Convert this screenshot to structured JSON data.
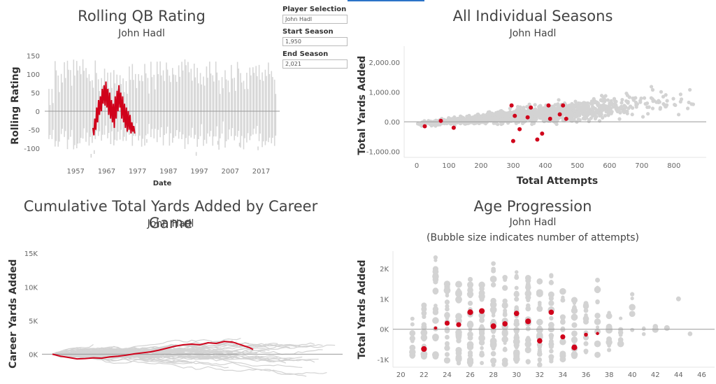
{
  "controls": {
    "player_label": "Player Selection",
    "player_value": "John Hadl",
    "start_label": "Start Season",
    "start_value": "1,950",
    "end_label": "End Season",
    "end_value": "2,021"
  },
  "colors": {
    "highlight": "#d0021b",
    "background_series": "#d3d3d3",
    "zero_line": "#999999"
  },
  "panels": {
    "p1": {
      "title": "Rolling QB Rating",
      "subtitle": "John Hadl"
    },
    "p2": {
      "title": "All Individual Seasons",
      "subtitle": "John Hadl"
    },
    "p3": {
      "title": "Cumulative Total Yards Added by Career Game",
      "subtitle": "John Hadl"
    },
    "p4": {
      "title": "Age Progression",
      "subtitle": "John Hadl",
      "subtitle2": "(Bubble size indicates number of attempts)"
    }
  },
  "chart_data": [
    {
      "id": "rolling",
      "type": "line",
      "ylabel": "Rolling Rating",
      "xlabel": "Date",
      "ylim": [
        -130,
        160
      ],
      "yticks": [
        "150",
        "100",
        "50",
        "0",
        "-50",
        "-100"
      ],
      "ytick_values": [
        150,
        100,
        50,
        0,
        -50,
        -100
      ],
      "xlim": [
        1947,
        2023
      ],
      "xticks": [
        "1957",
        "1967",
        "1977",
        "1987",
        "1997",
        "2007",
        "2017"
      ],
      "xtick_values": [
        1957,
        1967,
        1977,
        1987,
        1997,
        2007,
        2017
      ],
      "highlight_series": {
        "name": "John Hadl",
        "points": [
          [
            1962.6,
            -45
          ],
          [
            1962.9,
            -65
          ],
          [
            1963.2,
            -20
          ],
          [
            1963.5,
            -50
          ],
          [
            1963.8,
            10
          ],
          [
            1964.1,
            -30
          ],
          [
            1964.4,
            30
          ],
          [
            1964.7,
            -10
          ],
          [
            1965.0,
            40
          ],
          [
            1965.3,
            0
          ],
          [
            1965.6,
            60
          ],
          [
            1965.9,
            20
          ],
          [
            1966.2,
            70
          ],
          [
            1966.5,
            15
          ],
          [
            1966.8,
            80
          ],
          [
            1967.1,
            10
          ],
          [
            1967.4,
            60
          ],
          [
            1967.7,
            -10
          ],
          [
            1968.0,
            50
          ],
          [
            1968.3,
            -20
          ],
          [
            1968.6,
            30
          ],
          [
            1968.9,
            -30
          ],
          [
            1969.2,
            20
          ],
          [
            1969.5,
            -45
          ],
          [
            1969.8,
            40
          ],
          [
            1970.1,
            -20
          ],
          [
            1970.4,
            55
          ],
          [
            1970.7,
            0
          ],
          [
            1971.0,
            70
          ],
          [
            1971.3,
            10
          ],
          [
            1971.6,
            50
          ],
          [
            1971.9,
            -20
          ],
          [
            1972.2,
            40
          ],
          [
            1972.5,
            -30
          ],
          [
            1972.8,
            20
          ],
          [
            1973.1,
            -45
          ],
          [
            1973.4,
            10
          ],
          [
            1973.7,
            -55
          ],
          [
            1974.0,
            0
          ],
          [
            1974.3,
            -50
          ],
          [
            1974.6,
            -10
          ],
          [
            1974.9,
            -60
          ],
          [
            1975.2,
            -30
          ],
          [
            1975.5,
            -55
          ],
          [
            1975.8,
            -40
          ],
          [
            1976.1,
            -60
          ]
        ]
      }
    },
    {
      "id": "seasons",
      "type": "scatter",
      "xlabel": "Total Attempts",
      "ylabel": "Total Yards Added",
      "xlim": [
        0,
        870
      ],
      "ylim": [
        -1200,
        2500
      ],
      "xticks": [
        "0",
        "100",
        "200",
        "300",
        "400",
        "500",
        "600",
        "700",
        "800"
      ],
      "xtick_values": [
        0,
        100,
        200,
        300,
        400,
        500,
        600,
        700,
        800
      ],
      "yticks": [
        "2,000.00",
        "1,000.00",
        "0.00",
        "-1,000.00"
      ],
      "ytick_values": [
        2000,
        1000,
        0,
        -1000
      ],
      "highlight_points": [
        [
          25,
          -150
        ],
        [
          75,
          30
        ],
        [
          115,
          -200
        ],
        [
          295,
          550
        ],
        [
          300,
          -650
        ],
        [
          305,
          200
        ],
        [
          320,
          -250
        ],
        [
          345,
          150
        ],
        [
          355,
          480
        ],
        [
          375,
          -600
        ],
        [
          390,
          -400
        ],
        [
          410,
          550
        ],
        [
          415,
          100
        ],
        [
          445,
          250
        ],
        [
          455,
          550
        ],
        [
          465,
          100
        ]
      ]
    },
    {
      "id": "cumulative",
      "type": "line",
      "ylabel": "Career Yards Added",
      "ylim": [
        -3500,
        17000
      ],
      "yticks": [
        "15K",
        "10K",
        "5K",
        "0K"
      ],
      "ytick_values": [
        15000,
        10000,
        5000,
        0
      ],
      "highlight_series": {
        "name": "John Hadl",
        "points": [
          [
            0,
            0
          ],
          [
            10,
            -300
          ],
          [
            20,
            -500
          ],
          [
            30,
            -700
          ],
          [
            40,
            -650
          ],
          [
            50,
            -550
          ],
          [
            60,
            -600
          ],
          [
            70,
            -400
          ],
          [
            80,
            -300
          ],
          [
            90,
            -150
          ],
          [
            100,
            50
          ],
          [
            110,
            200
          ],
          [
            120,
            350
          ],
          [
            130,
            600
          ],
          [
            140,
            900
          ],
          [
            150,
            1200
          ],
          [
            160,
            1400
          ],
          [
            170,
            1500
          ],
          [
            180,
            1400
          ],
          [
            190,
            1700
          ],
          [
            200,
            1600
          ],
          [
            210,
            1900
          ],
          [
            220,
            1800
          ],
          [
            230,
            1400
          ],
          [
            240,
            1000
          ],
          [
            245,
            700
          ]
        ]
      }
    },
    {
      "id": "age",
      "type": "scatter",
      "ylabel": "Total Yards Added",
      "xlim": [
        19.5,
        47
      ],
      "ylim": [
        -1250,
        2550
      ],
      "xticks": [
        "20",
        "22",
        "24",
        "26",
        "28",
        "30",
        "32",
        "34",
        "36",
        "38",
        "40",
        "42",
        "44",
        "46"
      ],
      "xtick_values": [
        20,
        22,
        24,
        26,
        28,
        30,
        32,
        34,
        36,
        38,
        40,
        42,
        44,
        46
      ],
      "yticks": [
        "2K",
        "1K",
        "0K",
        "-1K"
      ],
      "ytick_values": [
        2000,
        1000,
        0,
        -1000
      ],
      "highlight_points": [
        [
          22,
          -650,
          1.0
        ],
        [
          23,
          40,
          0.3
        ],
        [
          24,
          200,
          0.8
        ],
        [
          25,
          150,
          0.8
        ],
        [
          26,
          560,
          1.0
        ],
        [
          27,
          600,
          1.0
        ],
        [
          28,
          100,
          1.0
        ],
        [
          29,
          180,
          0.9
        ],
        [
          30,
          520,
          0.9
        ],
        [
          31,
          260,
          1.0
        ],
        [
          32,
          -380,
          0.9
        ],
        [
          33,
          560,
          0.9
        ],
        [
          34,
          -250,
          0.8
        ],
        [
          35,
          -600,
          1.0
        ],
        [
          36,
          -180,
          0.5
        ],
        [
          37,
          -140,
          0.3
        ]
      ]
    }
  ]
}
